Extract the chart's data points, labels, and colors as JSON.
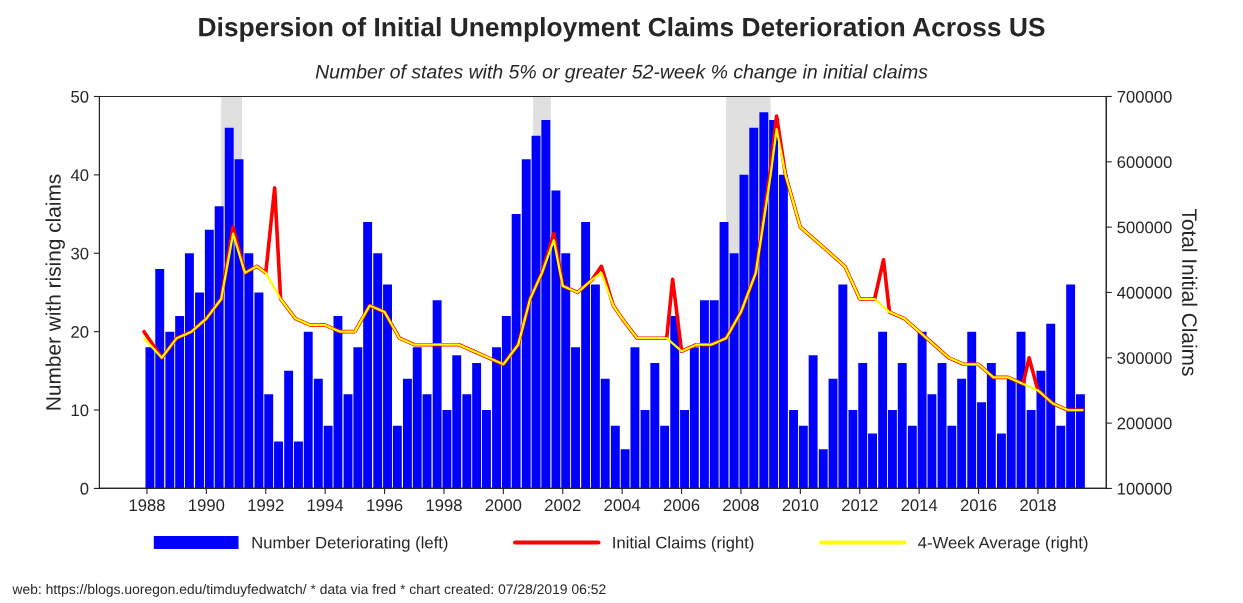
{
  "chart_data": {
    "type": "bar",
    "title": "Dispersion of Initial Unemployment Claims Deterioration Across US",
    "subtitle": "Number of states with 5% or greater 52-week % change in initial claims",
    "ylabel": "Number with rising claims",
    "y2label": "Total Initial Claims",
    "xlim": [
      1986.4,
      2020.3
    ],
    "xticks": [
      1988,
      1990,
      1992,
      1994,
      1996,
      1998,
      2000,
      2002,
      2004,
      2006,
      2008,
      2010,
      2012,
      2014,
      2016,
      2018
    ],
    "ylim": [
      0,
      50
    ],
    "yticks": [
      0,
      10,
      20,
      30,
      40,
      50
    ],
    "y2lim": [
      100000,
      700000
    ],
    "y2ticks": [
      100000,
      200000,
      300000,
      400000,
      500000,
      600000,
      700000
    ],
    "grid": false,
    "legend": "bottom",
    "bands": [
      {
        "axis": "x",
        "from": 1990.5,
        "to": 1991.2,
        "color": "#e0e0e0"
      },
      {
        "axis": "x",
        "from": 2001.0,
        "to": 2001.6,
        "color": "#e0e0e0"
      },
      {
        "axis": "x",
        "from": 2007.5,
        "to": 2009.0,
        "color": "#e0e0e0"
      }
    ],
    "series": [
      {
        "name": "Number Deteriorating (left)",
        "color": "#0000ff",
        "x": [
          1988.1,
          1988.43,
          1988.77,
          1989.1,
          1989.43,
          1989.77,
          1990.1,
          1990.43,
          1990.77,
          1991.1,
          1991.43,
          1991.77,
          1992.1,
          1992.43,
          1992.77,
          1993.1,
          1993.43,
          1993.77,
          1994.1,
          1994.43,
          1994.77,
          1995.1,
          1995.43,
          1995.77,
          1996.1,
          1996.43,
          1996.77,
          1997.1,
          1997.43,
          1997.77,
          1998.1,
          1998.43,
          1998.77,
          1999.1,
          1999.43,
          1999.77,
          2000.1,
          2000.43,
          2000.77,
          2001.1,
          2001.43,
          2001.77,
          2002.1,
          2002.43,
          2002.77,
          2003.1,
          2003.43,
          2003.77,
          2004.1,
          2004.43,
          2004.77,
          2005.1,
          2005.43,
          2005.77,
          2006.1,
          2006.43,
          2006.77,
          2007.1,
          2007.43,
          2007.77,
          2008.1,
          2008.43,
          2008.77,
          2009.1,
          2009.43,
          2009.77,
          2010.1,
          2010.43,
          2010.77,
          2011.1,
          2011.43,
          2011.77,
          2012.1,
          2012.43,
          2012.77,
          2013.1,
          2013.43,
          2013.77,
          2014.1,
          2014.43,
          2014.77,
          2015.1,
          2015.43,
          2015.77,
          2016.1,
          2016.43,
          2016.77,
          2017.1,
          2017.43,
          2017.77,
          2018.1,
          2018.43,
          2018.77,
          2019.1,
          2019.43
        ],
        "values": [
          18,
          28,
          20,
          22,
          30,
          25,
          33,
          36,
          46,
          42,
          30,
          25,
          12,
          6,
          15,
          6,
          20,
          14,
          8,
          22,
          12,
          18,
          34,
          30,
          26,
          8,
          14,
          18,
          12,
          24,
          10,
          17,
          12,
          16,
          10,
          18,
          22,
          35,
          42,
          45,
          47,
          38,
          30,
          18,
          34,
          26,
          14,
          8,
          5,
          18,
          10,
          16,
          8,
          22,
          10,
          18,
          24,
          24,
          34,
          30,
          40,
          46,
          48,
          47,
          40,
          10,
          8,
          17,
          5,
          14,
          26,
          10,
          16,
          7,
          20,
          10,
          16,
          8,
          20,
          12,
          16,
          8,
          14,
          20,
          11,
          16,
          7,
          14,
          20,
          10,
          15,
          21,
          8,
          26,
          12
        ]
      },
      {
        "name": "Initial Claims (right)",
        "type": "line",
        "axis": "y2",
        "color": "#ff0000",
        "x": [
          1987.9,
          1988.5,
          1989.0,
          1989.5,
          1990.0,
          1990.5,
          1990.9,
          1991.3,
          1991.7,
          1992.0,
          1992.3,
          1992.5,
          1993.0,
          1993.5,
          1994.0,
          1994.5,
          1995.0,
          1995.5,
          1996.0,
          1996.5,
          1997.0,
          1997.5,
          1998.0,
          1998.5,
          1999.0,
          1999.5,
          2000.0,
          2000.5,
          2000.9,
          2001.3,
          2001.7,
          2002.0,
          2002.5,
          2003.0,
          2003.3,
          2003.7,
          2004.0,
          2004.5,
          2005.0,
          2005.5,
          2005.7,
          2006.0,
          2006.5,
          2007.0,
          2007.5,
          2008.0,
          2008.5,
          2009.0,
          2009.2,
          2009.5,
          2010.0,
          2010.5,
          2011.0,
          2011.5,
          2012.0,
          2012.5,
          2012.8,
          2013.0,
          2013.5,
          2014.0,
          2014.5,
          2015.0,
          2015.5,
          2016.0,
          2016.5,
          2017.0,
          2017.5,
          2017.7,
          2018.0,
          2018.5,
          2019.0,
          2019.5
        ],
        "values": [
          340000,
          300000,
          330000,
          340000,
          360000,
          390000,
          500000,
          430000,
          440000,
          430000,
          560000,
          390000,
          360000,
          350000,
          350000,
          340000,
          340000,
          380000,
          370000,
          330000,
          320000,
          320000,
          320000,
          320000,
          310000,
          300000,
          290000,
          320000,
          390000,
          430000,
          490000,
          410000,
          400000,
          420000,
          440000,
          380000,
          360000,
          330000,
          330000,
          330000,
          420000,
          310000,
          320000,
          320000,
          330000,
          370000,
          430000,
          590000,
          670000,
          580000,
          500000,
          480000,
          460000,
          440000,
          390000,
          390000,
          450000,
          370000,
          360000,
          340000,
          320000,
          300000,
          290000,
          290000,
          270000,
          270000,
          260000,
          300000,
          250000,
          230000,
          220000,
          220000
        ]
      },
      {
        "name": "4-Week Average (right)",
        "type": "line",
        "axis": "y2",
        "color": "#ffff00",
        "x": [
          1987.9,
          1988.5,
          1989.0,
          1989.5,
          1990.0,
          1990.5,
          1990.9,
          1991.3,
          1991.7,
          1992.0,
          1992.5,
          1993.0,
          1993.5,
          1994.0,
          1994.5,
          1995.0,
          1995.5,
          1996.0,
          1996.5,
          1997.0,
          1997.5,
          1998.0,
          1998.5,
          1999.0,
          1999.5,
          2000.0,
          2000.5,
          2000.9,
          2001.3,
          2001.7,
          2002.0,
          2002.5,
          2003.0,
          2003.3,
          2003.7,
          2004.0,
          2004.5,
          2005.0,
          2005.5,
          2006.0,
          2006.5,
          2007.0,
          2007.5,
          2008.0,
          2008.5,
          2009.0,
          2009.2,
          2009.5,
          2010.0,
          2010.5,
          2011.0,
          2011.5,
          2012.0,
          2012.5,
          2013.0,
          2013.5,
          2014.0,
          2014.5,
          2015.0,
          2015.5,
          2016.0,
          2016.5,
          2017.0,
          2017.5,
          2018.0,
          2018.5,
          2019.0,
          2019.5
        ],
        "values": [
          330000,
          300000,
          330000,
          340000,
          360000,
          390000,
          490000,
          430000,
          440000,
          430000,
          390000,
          360000,
          350000,
          350000,
          340000,
          340000,
          380000,
          370000,
          330000,
          320000,
          320000,
          320000,
          320000,
          310000,
          300000,
          290000,
          320000,
          390000,
          430000,
          480000,
          410000,
          400000,
          420000,
          430000,
          380000,
          360000,
          330000,
          330000,
          330000,
          310000,
          320000,
          320000,
          330000,
          370000,
          430000,
          580000,
          650000,
          580000,
          500000,
          480000,
          460000,
          440000,
          390000,
          390000,
          370000,
          360000,
          340000,
          320000,
          300000,
          290000,
          290000,
          270000,
          270000,
          260000,
          250000,
          230000,
          220000,
          220000
        ]
      }
    ],
    "annotations": [
      "web: https://blogs.uoregon.edu/timduyfedwatch/ * data via fred * chart created: 07/28/2019 06:52"
    ]
  }
}
